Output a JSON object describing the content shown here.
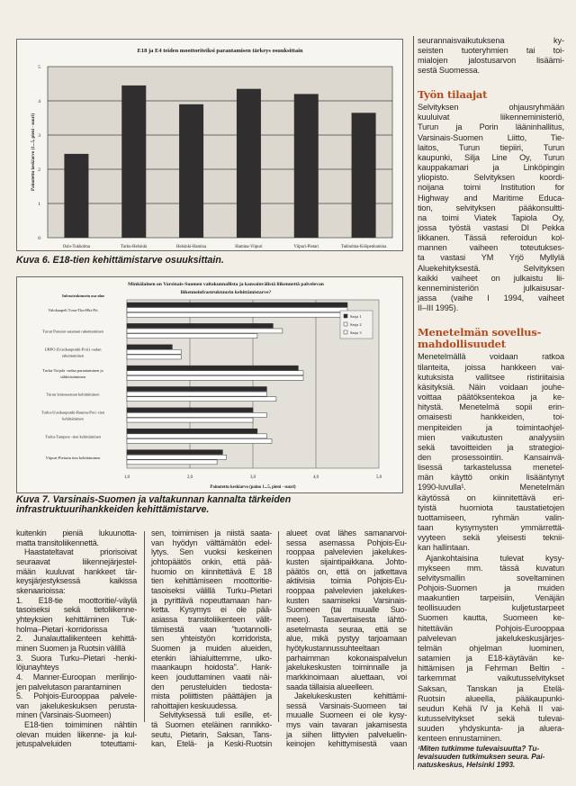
{
  "figure6": {
    "caption": "Kuva 6. E18-tien kehittämistarve osuuksittain.",
    "chart_data": {
      "type": "bar",
      "title": "E18 ja E4 teiden moottoriteiksi parantamisen tärkeys osuuksittain",
      "ylabel": "Painotettu keskiarvo (1...5, pieni - suuri)",
      "xlabel": "",
      "ylim": [
        0,
        5
      ],
      "yticks": [
        "0",
        "1",
        "2",
        "3",
        "4",
        "5"
      ],
      "categories": [
        "Oslo-Tukholma",
        "Turku-Helsinki",
        "Helsinki-Hamina",
        "Hamina-Viipuri",
        "Viipuri-Pietari",
        "Tukholma-Kööpenhamina"
      ],
      "values": [
        2.45,
        4.45,
        3.9,
        4.35,
        4.2,
        3.65
      ],
      "bar_color": "#302e2e",
      "grid": true
    }
  },
  "figure7": {
    "caption": "Kuva 7. Varsinais-Suomen ja valtakunnan kannalta tärkeiden infrastruktuurihankkeiden kehittämistarve.",
    "chart_data": {
      "type": "bar",
      "orientation": "horizontal",
      "title_lines": [
        "Minkälainen on Varsinais-Suomen valtakunnallista ja kansainvälistä liikennettä palvelevan",
        "liikenneinfrastruktuurin kehittämistarve?"
      ],
      "category_header": "Infrastruktuurin osa-alue",
      "xlabel": "Painotettu keskiarvo (paino 1...5, pieni - suuri)",
      "xlim": [
        1,
        5
      ],
      "xticks": [
        "1,0",
        "2,0",
        "3,0",
        "4,0",
        "5,0"
      ],
      "categories": [
        [
          "Valokaapeli T:ma-Tku-Hki-Pri"
        ],
        [
          "Turun Pansion sataman rakentaminen"
        ],
        [
          "URPO (Uusikaupunki-Pori) -radan",
          "rakentaminen"
        ],
        [
          "Turku-Toijala -radan parantaminen ja",
          "sähköistäminen"
        ],
        [
          "Turun lentoaseman kehittäminen"
        ],
        [
          "Turku-Uusikaupunki-Rauma-Pori -tien",
          "kehittäminen"
        ],
        [
          "Turku-Tampere -tien kehittäminen"
        ],
        [
          "Viipuri-Pietarin tien kehittäminen"
        ]
      ],
      "series": [
        {
          "name": "Sarja 1",
          "color": "#2c2a2a",
          "values": [
            4.5,
            3.32,
            1.72,
            3.72,
            3.22,
            3.0,
            3.07,
            2.52
          ]
        },
        {
          "name": "Sarja 2",
          "color": "#ffffff",
          "values": [
            4.5,
            3.47,
            1.86,
            3.8,
            3.22,
            3.22,
            3.22,
            2.58
          ]
        },
        {
          "name": "Sarja 3",
          "color": "#ffffff",
          "values": [
            4.5,
            3.07,
            1.86,
            3.8,
            3.37,
            3.0,
            3.3,
            2.43
          ]
        }
      ],
      "legend": "top-right",
      "grid": true
    }
  },
  "columns": {
    "col1": {
      "p1": [
        "kuitenkin pieniä lukuunotta-",
        "matta transitoliikennettä."
      ],
      "p2": [
        "Haastateltavat priorisoivat",
        "seuraavat liikennejärjestel-",
        "mään kuuluvat hankkeet tär-",
        "keysjärjestyksessä kaikissa",
        "skenaarioissa:"
      ],
      "l1": [
        "1. E18-tie moottoritie/-väylä",
        "tasoiseksi sekä tietoliikenne-",
        "yhteyksien kehittäminen Tuk-",
        "holma–Pietari -korridorissa"
      ],
      "l2": [
        "2. Junalauttaliikenteen kehittä-",
        "minen Suomen ja Ruotsin välillä"
      ],
      "l3": [
        "3. Suora Turku–Pietari -henki-",
        "löjunayhteys"
      ],
      "l4": [
        "4. Manner-Euroopan merilinjo-",
        "jen palvelutason parantaminen"
      ],
      "l5": [
        "5. Pohjois-Eurooppaa palvele-",
        "van jakelukeskuksen perusta-",
        "minen (Varsinais-Suomeen)"
      ],
      "p3": [
        "E18-tien toimiminen nähtiin",
        "olevan muiden liikenne- ja kul-",
        "jetuspalveluiden toteuttami-"
      ]
    },
    "col2": {
      "p1": [
        "sen, toimimisen ja niistä saata-",
        "van hyödyn välttämätön edel-",
        "lytys. Sen vuoksi keskeinen",
        "johtopäätös onkin, että pää-",
        "huomio on kiinnitettävä E 18",
        "tien kehittämiseen moottoritie-",
        "tasoiseksi välillä Turku–Pietari",
        "ja pyrittävä nopeuttamaan han-",
        "ketta. Kysymys ei ole pää-",
        "asiassa transitoliikenteen välit-",
        "tämisestä vaan \"tuotannolli-",
        "sen yhteistyön korridorista,",
        "Suomen ja muiden alueiden,",
        "etenkin lähialuittemme, ulko-",
        "maankaupn hoidosta\". Hank-",
        "keen jouduttaminen vaatii näi-",
        "den perusteluiden tiedosta-",
        "mista poliittisten päättäjien ja",
        "rahoittajien keskuudessa."
      ],
      "p2": [
        "Selvityksessä tuli esille, et-",
        "tä Suomen eteläinen rannikko-",
        "seutu, Pietarin, Saksan, Tans-",
        "kan, Etelä- ja Keski-Ruotsin"
      ]
    },
    "col3": {
      "p1": [
        "alueet ovat lähes samanarvoi-",
        "sessa asemassa Pohjois-Eu-",
        "rooppaa palvelevien jakelukes-",
        "kusten sijaintipaikkana. Johto-",
        "päätös on, että on jatkettava",
        "aktiivisia toimia Pohjois-Eu-",
        "rooppaa palvelevien jakelukes-",
        "kusten saamiseksi Varsinais-",
        "Suomeen (tai muualle Suo-",
        "meen). Tasavertaisesta lähtö-",
        "asetelmasta seuraa, että se",
        "alue, mikä pystyy tarjoamaan",
        "hyötykustannussuhteeltaan",
        "parhaimman kokonaispalvelun",
        "jakelukeskusten toiminnalle ja",
        "markkinoimaan aluettaan, voi",
        "saada tällaisia alueelleen."
      ],
      "p2": [
        "Jakelukeskusten kehittämi-",
        "sessä Varsinais-Suomeen tai",
        "muualle Suomeen ei ole kysy-",
        "mys vain tavaran jakamisesta",
        "ja siihen liittyvien palveluelin-",
        "keinojen kehittymisestä vaan"
      ]
    },
    "right": {
      "p1": [
        "seurannaisvaikutuksena ky-",
        "seisten tuoteryhmien tai toi-",
        "mialojen jalostusarvon lisäämi-",
        "sestä Suomessa."
      ],
      "heading1": "Työn tilaajat",
      "p2": [
        "Selvityksen ohjausryhmään",
        "kuuluivat liikenneministeriö,",
        "Turun ja Porin lääninhallitus,",
        "Varsinais-Suomen Liitto, Tie-",
        "laitos, Turun tiepiiri, Turun",
        "kaupunki, Silja Line Oy, Turun",
        "kauppakamari ja Linköpingin",
        "yliopisto. Selvityksen koordi-",
        "noijana toimi Institution for",
        "Highway and Maritime Educa-",
        "tion, selvityksen pääkonsultti-",
        "na toimi Viatek Tapiola Oy,",
        "jossa työstä vastasi DI Pekka",
        "Iikkanen. Tässä referoidun kol-",
        "mannen vaiheen toteutukses-",
        "ta vastasi YM Yrjö Myllylä",
        "Aluekehityksestä. Selvityksen",
        "kaikki vaiheet on julkaistu lii-",
        "kenneministeriön julkaisusar-",
        "jassa (vaihe I 1994, vaiheet",
        "II–III 1995)."
      ],
      "heading2": [
        "Menetelmän sovellus-",
        "mahdollisuudet"
      ],
      "p3": [
        "Menetelmällä voidaan ratkoa",
        "tilanteita, joissa hankkeen vai-",
        "kutuksista vallitsee ristiriitaisia",
        "käsityksiä. Näin voidaan jouhe-",
        "voittaa päätöksentekoa ja ke-",
        "hitystä. Menetelmä sopii erin-",
        "omaisesti hankkeiden, toi-",
        "menpiteiden ja toimintaohjel-",
        "mien vaikutusten analyysiin",
        "sekä tavoitteiden ja strategioi-",
        "den prosessointiin. Kansainvä-",
        "lisessä tarkastelussa menetel-",
        "män käyttö onkin lisääntynyt",
        "1990-luvulla¹. Menetelmän",
        "käytössä on kiinnitettävä eri-",
        "tyistä huomiota taustatietojen",
        "tuottamiseen, ryhmän valin-",
        "taan kysymysten ymmärrettä-",
        "vyyteen sekä yleisesti teknii-",
        "kan hallintaan."
      ],
      "p4": [
        "Ajankohtaisina tulevat kysy-",
        "mykseen mm. tässä kuvatun",
        "selvitysmallin soveltaminen",
        "Pohjois-Suomen ja muiden",
        "maakuntien tarpeisiin, Venäjän",
        "teollisuuden kuljetustarpeet",
        "Suomen kautta, Suomeen ke-",
        "hitettävän Pohjois-Eurooppaa",
        "palvelevan jakelukeskusjärjes-",
        "telmän ohjelman luominen,",
        "satamien ja E18-käytävän ke-",
        "hittämisen ja Fehrman Beltin -",
        "tarkemmat vaikutusselvitykset",
        "Saksan, Tanskan ja Etelä-",
        "Ruotsin alueella, pääkaupunki-",
        "seudun Kehä IV ja Kehä II vai-",
        "kutusselvitykset sekä tulevai-",
        "suuden yhdyskunta- ja aluera-",
        "kenteen ennustaminen."
      ],
      "footnote": [
        "¹Miten tutkimme tulevaisuutta? Tu-",
        "levaisuuden tutkimuksen seura. Pai-",
        "natuskeskus, Helsinki 1993."
      ]
    }
  }
}
